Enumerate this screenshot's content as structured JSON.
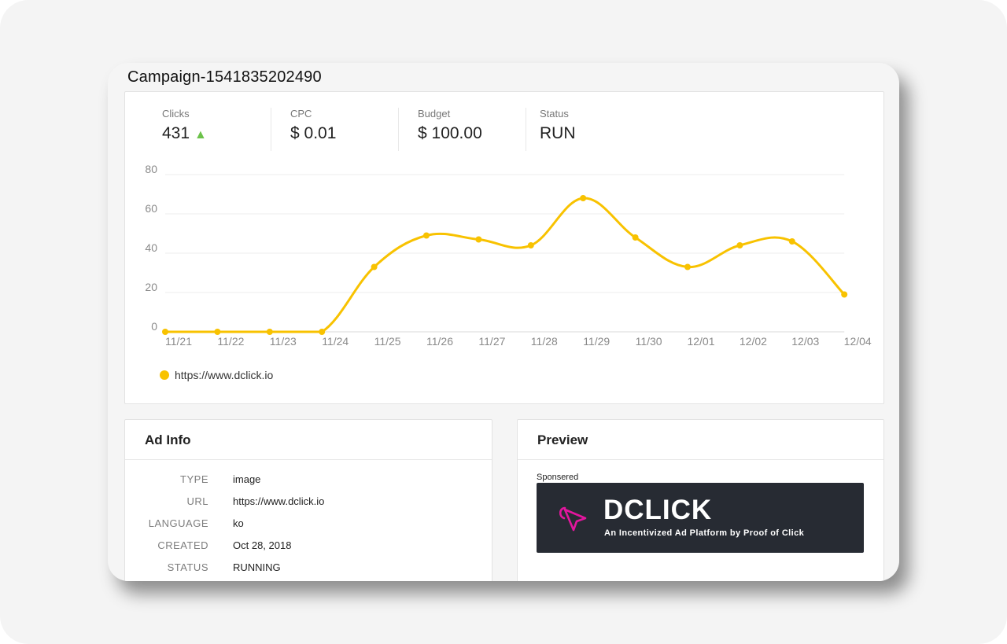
{
  "campaign": {
    "title": "Campaign-1541835202490"
  },
  "stats": [
    {
      "label": "Clicks",
      "value": "431",
      "trend": "▲"
    },
    {
      "label": "CPC",
      "value": "$ 0.01"
    },
    {
      "label": "Budget",
      "value": "$ 100.00"
    },
    {
      "label": "Status",
      "value": "RUN"
    }
  ],
  "chart_data": {
    "type": "line",
    "x": [
      "11/21",
      "11/22",
      "11/23",
      "11/24",
      "11/25",
      "11/26",
      "11/27",
      "11/28",
      "11/29",
      "11/30",
      "12/01",
      "12/02",
      "12/03",
      "12/04"
    ],
    "series": [
      {
        "name": "https://www.dclick.io",
        "values": [
          0,
          0,
          0,
          0,
          33,
          49,
          47,
          44,
          68,
          48,
          33,
          44,
          46,
          19
        ],
        "color": "#f8c200"
      }
    ],
    "yticks": [
      "0",
      "20",
      "40",
      "60",
      "80"
    ],
    "ylim": [
      0,
      80
    ],
    "grid": true,
    "legend": "bottom-left"
  },
  "ad_info": {
    "title": "Ad Info",
    "rows": [
      {
        "key": "TYPE",
        "value": "image"
      },
      {
        "key": "URL",
        "value": "https://www.dclick.io"
      },
      {
        "key": "LANGUAGE",
        "value": "ko"
      },
      {
        "key": "CREATED",
        "value": "Oct 28, 2018"
      },
      {
        "key": "STATUS",
        "value": "RUNNING"
      }
    ]
  },
  "preview": {
    "title": "Preview",
    "sponsored": "Sponsered",
    "banner_name": "DCLICK",
    "banner_tagline": "An Incentivized Ad Platform by Proof of Click",
    "banner_bg": "#272b33",
    "logo_color": "#e3169e"
  }
}
